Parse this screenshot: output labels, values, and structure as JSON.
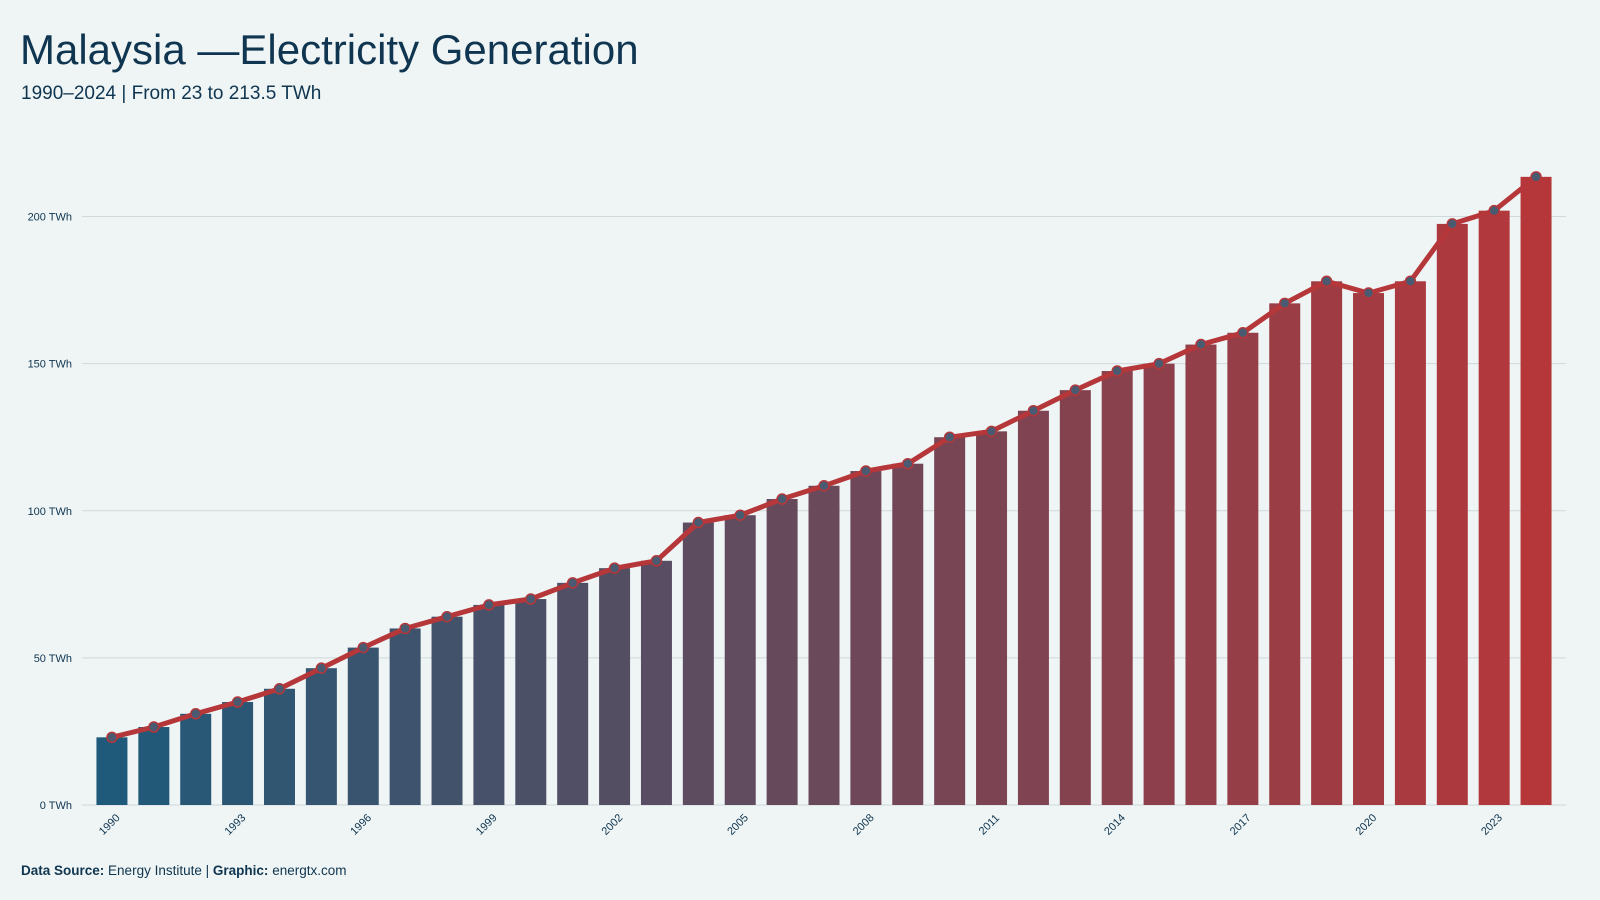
{
  "chart_data": {
    "type": "bar",
    "title": "Malaysia —Electricity Generation",
    "subtitle": "1990–2024 | From 23 to 213.5 TWh",
    "categories": [
      "1990",
      null,
      null,
      "1993",
      null,
      null,
      "1996",
      null,
      null,
      "1999",
      null,
      null,
      "2002",
      null,
      null,
      "2005",
      null,
      null,
      "2008",
      null,
      null,
      "2011",
      null,
      null,
      "2014",
      null,
      null,
      "2017",
      null,
      null,
      "2020",
      null,
      null,
      "2023",
      null
    ],
    "values": [
      23,
      26.5,
      31,
      35,
      39.5,
      46.5,
      53.5,
      60,
      64,
      68,
      70,
      75.5,
      80.5,
      83,
      96,
      98.5,
      104,
      108.5,
      113.5,
      116,
      125,
      127,
      134,
      141,
      147.5,
      150,
      156.5,
      160.5,
      170.5,
      178,
      174,
      178,
      197.5,
      202,
      213.5
    ],
    "color_scale": [
      "#1f5a7a",
      "#b5373a"
    ],
    "line_color": "#b5373a",
    "marker_color": "#4a5a70",
    "ylim": [
      0,
      225
    ],
    "yticks": [
      {
        "value": 0,
        "label": "0 TWh"
      },
      {
        "value": 50,
        "label": "50 TWh"
      },
      {
        "value": 100,
        "label": "100 TWh"
      },
      {
        "value": 150,
        "label": "150 TWh"
      },
      {
        "value": 200,
        "label": "200 TWh"
      }
    ],
    "grid": true
  },
  "footer": {
    "source_label": "Data Source:",
    "source": "Energy Institute",
    "separator": "|",
    "graphic_label": "Graphic:",
    "graphic": "energtx.com"
  }
}
